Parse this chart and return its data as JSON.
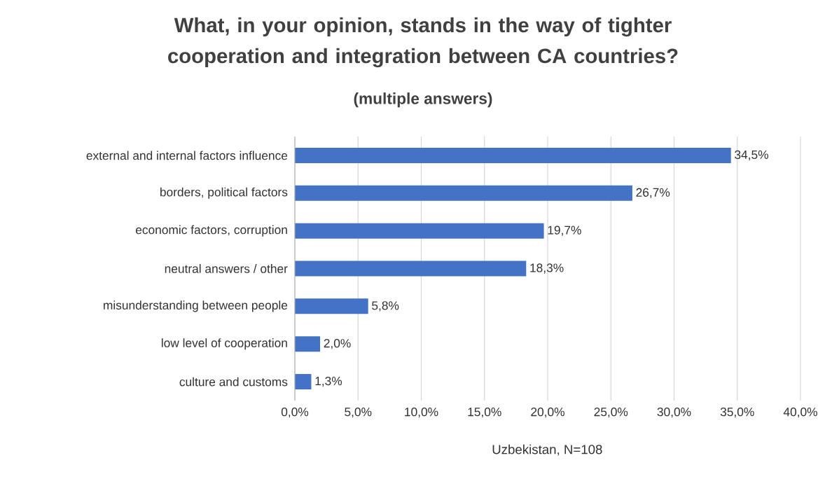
{
  "chart_data": {
    "type": "bar",
    "orientation": "horizontal",
    "title": "What, in your opinion, stands in the way of tighter cooperation and integration between CA countries?",
    "subtitle": "(multiple answers)",
    "xlabel": "Uzbekistan, N=108",
    "categories": [
      "external and internal factors influence",
      "borders, political factors",
      "economic factors, corruption",
      "neutral answers / other",
      "misunderstanding between people",
      "low level of cooperation",
      "culture and customs"
    ],
    "values": [
      34.5,
      26.7,
      19.7,
      18.3,
      5.8,
      2.0,
      1.3
    ],
    "value_labels": [
      "34,5%",
      "26,7%",
      "19,7%",
      "18,3%",
      "5,8%",
      "2,0%",
      "1,3%"
    ],
    "color": "#4472c4",
    "xlim": [
      0,
      40
    ],
    "xticks": [
      {
        "value": 0,
        "label": "0,0%"
      },
      {
        "value": 5,
        "label": "5,0%"
      },
      {
        "value": 10,
        "label": "10,0%"
      },
      {
        "value": 15,
        "label": "15,0%"
      },
      {
        "value": 20,
        "label": "20,0%"
      },
      {
        "value": 25,
        "label": "25,0%"
      },
      {
        "value": 30,
        "label": "30,0%"
      },
      {
        "value": 35,
        "label": "35,0%"
      },
      {
        "value": 40,
        "label": "40,0%"
      }
    ],
    "grid": "x"
  }
}
